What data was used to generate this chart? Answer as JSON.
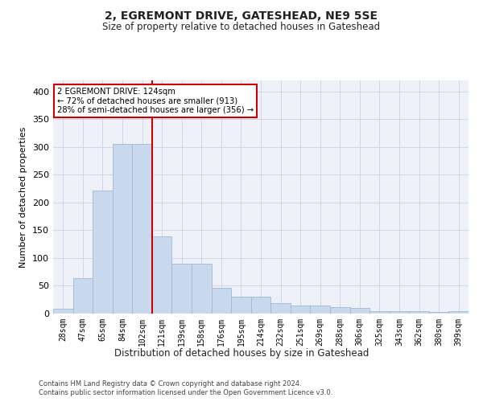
{
  "title": "2, EGREMONT DRIVE, GATESHEAD, NE9 5SE",
  "subtitle": "Size of property relative to detached houses in Gateshead",
  "xlabel": "Distribution of detached houses by size in Gateshead",
  "ylabel": "Number of detached properties",
  "bar_labels": [
    "28sqm",
    "47sqm",
    "65sqm",
    "84sqm",
    "102sqm",
    "121sqm",
    "139sqm",
    "158sqm",
    "176sqm",
    "195sqm",
    "214sqm",
    "232sqm",
    "251sqm",
    "269sqm",
    "288sqm",
    "306sqm",
    "325sqm",
    "343sqm",
    "362sqm",
    "380sqm",
    "399sqm"
  ],
  "bar_values": [
    8,
    64,
    222,
    306,
    305,
    139,
    90,
    90,
    46,
    30,
    30,
    19,
    15,
    14,
    11,
    10,
    5,
    5,
    4,
    3,
    5
  ],
  "bar_color": "#c8d9ed",
  "bar_edge_color": "#a0b8d8",
  "vline_x_idx": 5,
  "vline_color": "#cc0000",
  "annotation_text": "2 EGREMONT DRIVE: 124sqm\n← 72% of detached houses are smaller (913)\n28% of semi-detached houses are larger (356) →",
  "annotation_box_color": "#ffffff",
  "annotation_box_edge": "#cc0000",
  "ylim": [
    0,
    420
  ],
  "yticks": [
    0,
    50,
    100,
    150,
    200,
    250,
    300,
    350,
    400
  ],
  "grid_color": "#d0d8e8",
  "background_color": "#eef2f8",
  "footer_line1": "Contains HM Land Registry data © Crown copyright and database right 2024.",
  "footer_line2": "Contains public sector information licensed under the Open Government Licence v3.0."
}
